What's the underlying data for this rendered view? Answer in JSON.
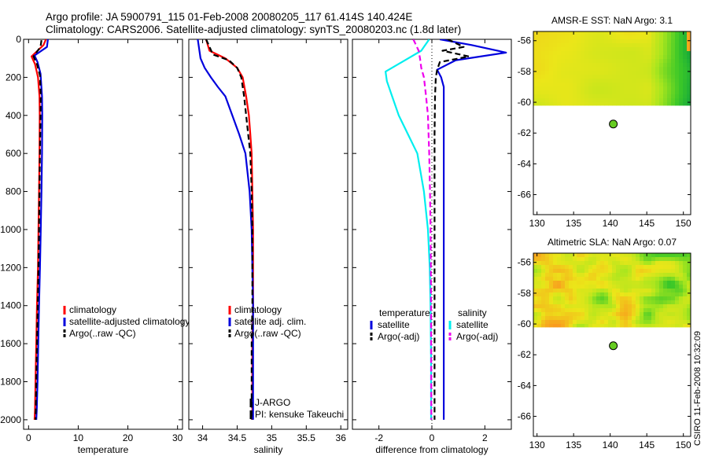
{
  "header": {
    "title_line1": "Argo profile: JA 5900791_115 01-Feb-2008 20080205_117 61.414S 140.424E",
    "title_line2": "Climatology: CARS2006. Satellite-adjusted climatology: synTS_20080203.nc (1.8d later)"
  },
  "footer": {
    "stamp": "CSIRO 11-Feb-2008 10:32:09"
  },
  "colors": {
    "clim": "#ff0000",
    "sat": "#0000dd",
    "argo": "#000000",
    "sal_sat": "#00eeee",
    "sal_argo": "#ee00ee",
    "marker": "#66cc22"
  },
  "chart_data": [
    {
      "id": "temperature",
      "type": "line",
      "xlabel": "temperature",
      "ylabel": "",
      "xlim": [
        -1,
        31
      ],
      "ylim": [
        2050,
        0
      ],
      "y_reversed": true,
      "xticks": [
        0,
        10,
        20,
        30
      ],
      "yticks": [
        0,
        200,
        400,
        600,
        800,
        1000,
        1200,
        1400,
        1600,
        1800,
        2000
      ],
      "legend": {
        "placement": "lower-right",
        "entries": [
          "climatology",
          "satellite-adjusted climatology",
          "Argo(..raw -QC)"
        ]
      },
      "series": [
        {
          "name": "climatology",
          "style": "solid",
          "color": "#ff0000",
          "x": [
            3.5,
            3.0,
            0.6,
            1.3,
            1.9,
            2.2,
            2.25,
            2.2,
            2.1,
            2.0,
            1.9,
            1.7,
            1.55,
            1.4,
            1.3,
            1.2
          ],
          "y": [
            0,
            30,
            90,
            130,
            200,
            300,
            400,
            600,
            800,
            1000,
            1200,
            1400,
            1600,
            1800,
            1950,
            2000
          ]
        },
        {
          "name": "satellite-adjusted climatology",
          "style": "solid",
          "color": "#0000dd",
          "x": [
            3.9,
            3.7,
            1.2,
            1.8,
            2.4,
            2.7,
            2.75,
            2.7,
            2.6,
            2.45,
            2.3,
            2.1,
            1.95,
            1.8,
            1.65,
            1.55
          ],
          "y": [
            0,
            40,
            85,
            120,
            180,
            300,
            400,
            600,
            800,
            1000,
            1200,
            1400,
            1600,
            1800,
            1950,
            2000
          ]
        },
        {
          "name": "Argo(..raw -QC)",
          "style": "dashed",
          "color": "#000000",
          "x": [
            2.6,
            2.4,
            1.0,
            1.7,
            2.3,
            2.45,
            2.4,
            2.3,
            2.2,
            2.1,
            2.0,
            1.85,
            1.7,
            1.55,
            1.45,
            1.4
          ],
          "y": [
            5,
            40,
            90,
            130,
            190,
            300,
            400,
            600,
            800,
            1000,
            1200,
            1400,
            1600,
            1800,
            1950,
            2000
          ]
        }
      ]
    },
    {
      "id": "salinity",
      "type": "line",
      "xlabel": "salinity",
      "ylabel": "",
      "xlim": [
        33.8,
        36.1
      ],
      "ylim": [
        2050,
        0
      ],
      "y_reversed": true,
      "xticks": [
        34,
        34.5,
        35,
        35.5,
        36
      ],
      "xtick_labels": [
        "34",
        "34.5",
        "35",
        "35.5",
        "36"
      ],
      "legend": {
        "placement": "lower-right",
        "entries": [
          "climatology",
          "satellite adj. clim.",
          "Argo(..raw -QC)"
        ]
      },
      "annotations": [
        "J-ARGO",
        "PI: kensuke Takeuchi"
      ],
      "series": [
        {
          "name": "climatology",
          "style": "solid",
          "color": "#ff0000",
          "x": [
            34.05,
            34.1,
            34.33,
            34.5,
            34.58,
            34.63,
            34.67,
            34.69,
            34.71,
            34.72,
            34.73,
            34.73,
            34.73,
            34.72,
            34.72,
            34.72
          ],
          "y": [
            0,
            60,
            100,
            150,
            200,
            300,
            400,
            500,
            600,
            800,
            1000,
            1200,
            1400,
            1600,
            1800,
            2000
          ]
        },
        {
          "name": "satellite adj. clim.",
          "style": "solid",
          "color": "#0000dd",
          "x": [
            33.93,
            33.97,
            34.03,
            34.12,
            34.22,
            34.33,
            34.43,
            34.53,
            34.62,
            34.68,
            34.71,
            34.72,
            34.73,
            34.73,
            34.73,
            34.73
          ],
          "y": [
            0,
            100,
            150,
            200,
            250,
            300,
            400,
            500,
            600,
            800,
            1000,
            1200,
            1400,
            1600,
            1800,
            2000
          ]
        },
        {
          "name": "Argo(..raw -QC)",
          "style": "dashed",
          "color": "#000000",
          "x": [
            34.05,
            34.15,
            34.38,
            34.5,
            34.56,
            34.6,
            34.63,
            34.66,
            34.69,
            34.71,
            34.72,
            34.72,
            34.72,
            34.71,
            34.71,
            34.71
          ],
          "y": [
            0,
            80,
            110,
            150,
            200,
            300,
            400,
            500,
            600,
            800,
            1000,
            1200,
            1400,
            1600,
            1800,
            2000
          ]
        }
      ]
    },
    {
      "id": "difference",
      "type": "line",
      "xlabel": "difference from climatology",
      "ylabel": "",
      "xlim": [
        -3,
        3
      ],
      "ylim": [
        2050,
        0
      ],
      "y_reversed": true,
      "xticks": [
        -2,
        0,
        2
      ],
      "legend": {
        "placement": "lower-center",
        "groups": [
          {
            "title": "temperature",
            "entries": [
              "satellite",
              "Argo(-adj)"
            ]
          },
          {
            "title": "salinity",
            "entries": [
              "satellite",
              "Argo(-adj)"
            ]
          }
        ]
      },
      "series": [
        {
          "name": "satellite",
          "group": "temperature",
          "style": "solid",
          "color": "#0000dd",
          "x": [
            0.3,
            1.5,
            2.8,
            0.9,
            0.2,
            0.35,
            0.45,
            0.45,
            0.45,
            0.45,
            0.45,
            0.45,
            0.45,
            0.45,
            0.45
          ],
          "y": [
            0,
            30,
            70,
            110,
            160,
            200,
            250,
            400,
            600,
            800,
            1000,
            1200,
            1500,
            1800,
            2000
          ]
        },
        {
          "name": "Argo(-adj)",
          "group": "temperature",
          "style": "dashed",
          "color": "#000000",
          "x": [
            0.6,
            1.2,
            0.4,
            1.4,
            0.3,
            0.2,
            0.15,
            0.12,
            0.1,
            0.1,
            0.1,
            0.1,
            0.1,
            0.1
          ],
          "y": [
            0,
            40,
            60,
            90,
            120,
            160,
            200,
            300,
            500,
            800,
            1000,
            1300,
            1700,
            2000
          ]
        },
        {
          "name": "satellite",
          "group": "salinity",
          "style": "solid",
          "color": "#00eeee",
          "x": [
            -0.1,
            -0.4,
            -1.75,
            -1.7,
            -1.5,
            -1.25,
            -0.9,
            -0.55,
            -0.3,
            -0.15,
            -0.08,
            -0.05,
            -0.03,
            -0.03
          ],
          "y": [
            0,
            60,
            170,
            220,
            300,
            400,
            500,
            600,
            800,
            1000,
            1200,
            1400,
            1700,
            2000
          ]
        },
        {
          "name": "Argo(-adj)",
          "group": "salinity",
          "style": "dashed",
          "color": "#ee00ee",
          "x": [
            -0.7,
            -0.5,
            -0.45,
            -0.4,
            -0.3,
            -0.22,
            -0.15,
            -0.1,
            -0.07,
            -0.05,
            -0.03,
            -0.02
          ],
          "y": [
            0,
            60,
            100,
            150,
            200,
            300,
            400,
            600,
            800,
            1000,
            1400,
            2000
          ]
        }
      ]
    },
    {
      "id": "sst-map",
      "type": "heatmap",
      "title": "AMSR-E SST: NaN Argo: 3.1",
      "xlim": [
        129.5,
        151
      ],
      "ylim": [
        -67.3,
        -55.4
      ],
      "xticks": [
        130,
        135,
        140,
        145,
        150
      ],
      "yticks": [
        -56,
        -58,
        -60,
        -62,
        -64,
        -66
      ],
      "data_region": {
        "lat_min": -60.2,
        "lat_max": -55.4
      },
      "points": [
        {
          "lon": 140.424,
          "lat": -61.414
        }
      ]
    },
    {
      "id": "sla-map",
      "type": "heatmap",
      "title": "Altimetric SLA: NaN Argo: 0.07",
      "xlim": [
        129.5,
        151
      ],
      "ylim": [
        -67.3,
        -55.4
      ],
      "xticks": [
        130,
        135,
        140,
        145,
        150
      ],
      "yticks": [
        -56,
        -58,
        -60,
        -62,
        -64,
        -66
      ],
      "data_region": {
        "lat_min": -60.2,
        "lat_max": -55.4
      },
      "points": [
        {
          "lon": 140.424,
          "lat": -61.414
        }
      ]
    }
  ]
}
